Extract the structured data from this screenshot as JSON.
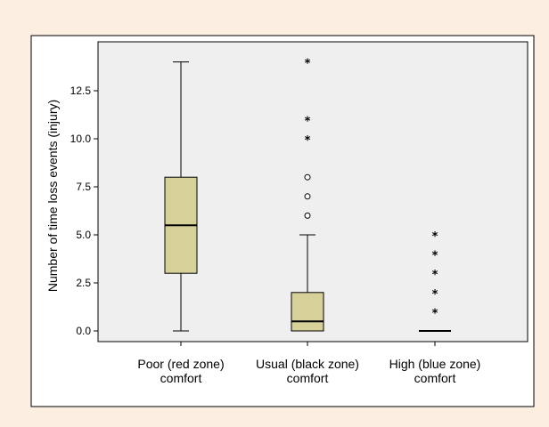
{
  "chart_data": {
    "type": "box",
    "title": "",
    "ylabel": "Number of time loss events (injury)",
    "xlabel": "",
    "ylim": [
      -0.4,
      14.4
    ],
    "yticks": [
      "0.0",
      "2.5",
      "5.0",
      "7.5",
      "10.0",
      "12.5"
    ],
    "grid": false,
    "colors": {
      "box_fill": "#d6d099",
      "plot_bg": "#efefef",
      "frame_bg": "#fdeee2"
    },
    "categories": [
      {
        "line1": "Poor (red zone)",
        "line2": "comfort"
      },
      {
        "line1": "Usual (black zone)",
        "line2": "comfort"
      },
      {
        "line1": "High (blue zone)",
        "line2": "comfort"
      }
    ],
    "boxes": [
      {
        "whisker_low": 0,
        "q1": 3,
        "median": 5.5,
        "q3": 8,
        "whisker_high": 14,
        "outliers": [],
        "extremes": []
      },
      {
        "whisker_low": 0,
        "q1": 0,
        "median": 0.5,
        "q3": 2,
        "whisker_high": 5,
        "outliers": [
          6,
          7,
          8
        ],
        "extremes": [
          10,
          11,
          14
        ]
      },
      {
        "whisker_low": 0,
        "q1": 0,
        "median": 0,
        "q3": 0,
        "whisker_high": 0,
        "outliers": [],
        "extremes": [
          1,
          2,
          3,
          4,
          5
        ]
      }
    ]
  }
}
